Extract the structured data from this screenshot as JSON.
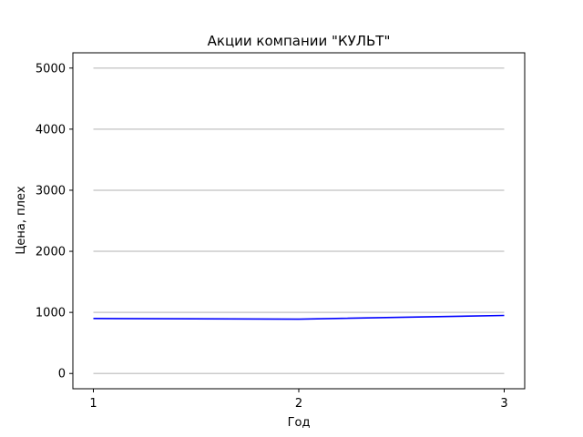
{
  "chart_data": {
    "type": "line",
    "title": "Акции компании \"КУЛЬТ\"",
    "xlabel": "Год",
    "ylabel": "Цена, плех",
    "x": [
      1,
      2,
      3
    ],
    "xticks": [
      "1",
      "2",
      "3"
    ],
    "yticks": [
      "0",
      "1000",
      "2000",
      "3000",
      "4000",
      "5000"
    ],
    "ylim": [
      -250,
      5250
    ],
    "grid": "horizontal",
    "series": [
      {
        "values": [
          900,
          890,
          950
        ],
        "color": "#0000ff"
      }
    ]
  },
  "colors": {
    "grid": "#cccccc",
    "axes": "#000000",
    "line": "#0000ff"
  }
}
